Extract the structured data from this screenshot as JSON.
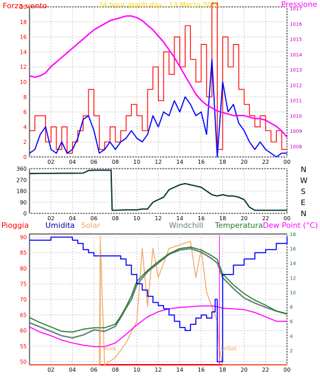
{
  "colors": {
    "wind": "#ff0000",
    "gust_blue": "#0000ff",
    "pressure": "#ff00ff",
    "title": "#ffd700",
    "direction": "#003333",
    "humidity_label": "#000099",
    "solar": "#f4a460",
    "windchill": "#5f7f7f",
    "temperature": "#1f7a1f",
    "dewpoint": "#ff00ff",
    "rain": "#ff0000",
    "grid": "#cccccc"
  },
  "top_panel": {
    "title": "24 hour graph day : 13 Marzo 2021",
    "left_label": "Forza vento",
    "right_label": "Pressione"
  },
  "middle_panel": {
    "compass": [
      "N",
      "W",
      "S",
      "E",
      "N"
    ]
  },
  "bottom_panel": {
    "legend": [
      "Pioggia",
      "Umidita",
      "Solar",
      "Windchill",
      "Temperatura",
      "Dew Point (°C)"
    ],
    "rise_label": "Rise",
    "set_label": "SunSet"
  },
  "chart_data": [
    {
      "type": "line",
      "title": "24 hour graph day : 13 Marzo 2021",
      "ylabel": "Forza vento",
      "y2label": "Pressione",
      "x_ticks": [
        "02",
        "04",
        "06",
        "08",
        "10",
        "12",
        "14",
        "16",
        "18",
        "20",
        "22",
        "00"
      ],
      "xlim": [
        0,
        24
      ],
      "ylim": [
        0,
        20
      ],
      "y_ticks": [
        0,
        2,
        4,
        6,
        8,
        10,
        12,
        14,
        16,
        18,
        20
      ],
      "y2lim": [
        1007.3,
        1017.1
      ],
      "y2_ticks": [
        1008,
        1009,
        1010,
        1011,
        1012,
        1013,
        1014,
        1015,
        1016,
        1017
      ],
      "series": [
        {
          "x": [
            0.0,
            0.5,
            1.0,
            1.5,
            2.0,
            2.5,
            3.0,
            3.5,
            4.0,
            4.5,
            5.0,
            5.5,
            6.0,
            6.5,
            7.0,
            7.5,
            8.0,
            8.5,
            9.0,
            9.5,
            10.0,
            10.5,
            11.0,
            11.5,
            12.0,
            12.5,
            13.0,
            13.5,
            14.0,
            14.5,
            15.0,
            15.5,
            16.0,
            16.5,
            17.0,
            17.5,
            18.0,
            18.5,
            19.0,
            19.5,
            20.0,
            20.5,
            21.0,
            21.5,
            22.0,
            22.5,
            23.0,
            23.5,
            24.0
          ],
          "values": [
            3.5,
            5.5,
            5.5,
            2.0,
            4.0,
            1.0,
            4.0,
            0.5,
            2.0,
            3.5,
            5.5,
            9.0,
            5.5,
            1.0,
            2.0,
            4.0,
            2.0,
            3.5,
            5.5,
            7.0,
            5.5,
            3.5,
            9.0,
            12.0,
            7.5,
            14.0,
            11.0,
            16.0,
            12.0,
            17.5,
            13.0,
            10.0,
            15.0,
            8.0,
            20.5,
            1.0,
            16.0,
            12.0,
            15.0,
            9.0,
            7.0,
            5.5,
            4.0,
            5.5,
            3.5,
            2.0,
            3.5,
            1.0,
            1.0
          ]
        },
        {
          "x": [
            0.0,
            0.5,
            1.0,
            1.5,
            2.0,
            2.5,
            3.0,
            3.5,
            4.0,
            4.5,
            5.0,
            5.5,
            6.0,
            6.5,
            7.0,
            7.5,
            8.0,
            8.5,
            9.0,
            9.5,
            10.0,
            10.5,
            11.0,
            11.5,
            12.0,
            12.5,
            13.0,
            13.5,
            14.0,
            14.5,
            15.0,
            15.5,
            16.0,
            16.5,
            17.0,
            17.5,
            18.0,
            18.5,
            19.0,
            19.5,
            20.0,
            20.5,
            21.0,
            21.5,
            22.0,
            22.5,
            23.0,
            23.5,
            24.0
          ],
          "values": [
            0.5,
            1.0,
            3.0,
            4.0,
            1.0,
            0.5,
            2.0,
            0.5,
            1.0,
            2.5,
            5.0,
            5.5,
            3.5,
            0.5,
            1.0,
            2.0,
            1.0,
            2.0,
            2.5,
            3.5,
            2.5,
            2.0,
            3.0,
            5.5,
            4.0,
            6.0,
            5.5,
            7.5,
            6.0,
            8.0,
            7.0,
            5.5,
            6.0,
            3.0,
            13.0,
            0.0,
            10.0,
            6.0,
            7.0,
            4.5,
            3.5,
            2.0,
            1.0,
            2.0,
            1.0,
            0.5,
            0.0,
            0.5,
            0.5
          ]
        },
        {
          "x": [
            0.0,
            0.5,
            1.0,
            1.5,
            2.0,
            2.5,
            3.0,
            3.5,
            4.0,
            4.5,
            5.0,
            5.5,
            6.0,
            6.5,
            7.0,
            7.5,
            8.0,
            8.5,
            9.0,
            9.5,
            10.0,
            10.5,
            11.0,
            11.5,
            12.0,
            12.5,
            13.0,
            13.5,
            14.0,
            14.5,
            15.0,
            15.5,
            16.0,
            16.5,
            17.0,
            17.5,
            18.0,
            18.5,
            19.0,
            19.5,
            20.0,
            20.5,
            21.0,
            21.5,
            22.0,
            22.5,
            23.0,
            23.5,
            24.0
          ],
          "values": [
            1012.6,
            1012.5,
            1012.6,
            1012.8,
            1013.2,
            1013.5,
            1013.8,
            1014.1,
            1014.4,
            1014.7,
            1015.0,
            1015.3,
            1015.6,
            1015.8,
            1016.0,
            1016.2,
            1016.3,
            1016.4,
            1016.5,
            1016.5,
            1016.4,
            1016.2,
            1015.9,
            1015.6,
            1015.2,
            1014.8,
            1014.3,
            1013.8,
            1013.2,
            1012.6,
            1012.0,
            1011.4,
            1011.0,
            1010.7,
            1010.5,
            1010.3,
            1010.2,
            1010.1,
            1010.0,
            1010.0,
            1010.0,
            1009.9,
            1009.8,
            1009.8,
            1009.7,
            1009.5,
            1009.3,
            1009.0,
            1008.6
          ],
          "axis": "right"
        }
      ]
    },
    {
      "type": "line",
      "x_ticks": [
        "02",
        "04",
        "06",
        "08",
        "10",
        "12",
        "14",
        "16",
        "18",
        "20",
        "22",
        "00"
      ],
      "xlim": [
        0,
        24
      ],
      "ylim": [
        0,
        360
      ],
      "y_ticks": [
        0,
        90,
        180,
        270,
        360
      ],
      "series": [
        {
          "x": [
            0.0,
            1.0,
            2.0,
            3.0,
            4.0,
            5.0,
            5.5,
            6.0,
            7.0,
            7.6,
            7.7,
            8.0,
            9.0,
            10.0,
            10.5,
            11.0,
            11.5,
            12.0,
            12.5,
            13.0,
            13.5,
            14.0,
            14.5,
            15.0,
            15.5,
            16.0,
            16.5,
            17.0,
            17.5,
            18.0,
            18.5,
            19.0,
            19.5,
            20.0,
            20.5,
            21.0,
            22.0,
            23.0,
            24.0
          ],
          "values": [
            320,
            322,
            322,
            323,
            323,
            324,
            345,
            347,
            347,
            347,
            25,
            25,
            28,
            28,
            35,
            35,
            90,
            110,
            130,
            190,
            210,
            230,
            240,
            230,
            220,
            210,
            180,
            150,
            140,
            150,
            140,
            140,
            130,
            110,
            50,
            25,
            25,
            25,
            25
          ]
        }
      ]
    },
    {
      "type": "line",
      "x_ticks": [
        "02",
        "04",
        "06",
        "08",
        "10",
        "12",
        "14",
        "16",
        "18",
        "20",
        "22",
        "00"
      ],
      "xlim": [
        0,
        24
      ],
      "ylim": [
        49,
        91
      ],
      "y_ticks": [
        50,
        55,
        60,
        65,
        70,
        75,
        80,
        85,
        90
      ],
      "y2lim": [
        0,
        18
      ],
      "y2_ticks": [
        2,
        4,
        6,
        8,
        10,
        12,
        14,
        16,
        18
      ],
      "series": [
        {
          "name": "Umidita",
          "x": [
            0.0,
            1.0,
            2.0,
            3.0,
            4.0,
            4.5,
            5.0,
            5.5,
            6.0,
            7.0,
            8.0,
            8.5,
            9.0,
            9.5,
            10.0,
            10.5,
            11.0,
            11.5,
            12.0,
            12.5,
            13.0,
            13.5,
            14.0,
            14.5,
            15.0,
            15.5,
            16.0,
            16.5,
            17.0,
            17.3,
            17.5,
            17.8,
            18.0,
            19.0,
            20.0,
            21.0,
            22.0,
            23.0,
            24.0
          ],
          "values": [
            89,
            89,
            90,
            90,
            89,
            88,
            86,
            85,
            84,
            84,
            84,
            83,
            81,
            78,
            75,
            73,
            71,
            69,
            68,
            67,
            65,
            63,
            61,
            60,
            62,
            64,
            65,
            64,
            66,
            70,
            50,
            50,
            78,
            81,
            83,
            85,
            86,
            88,
            90
          ]
        },
        {
          "name": "Solar",
          "x": [
            0.0,
            6.0,
            6.5,
            6.6,
            7.0,
            8.0,
            9.0,
            10.0,
            10.5,
            11.0,
            11.5,
            12.0,
            12.5,
            13.0,
            14.0,
            15.0,
            15.5,
            16.0,
            16.5,
            17.0,
            17.5,
            17.7,
            18.0,
            24.0
          ],
          "values": [
            0,
            0,
            0,
            17,
            0,
            1,
            3,
            6,
            16,
            8,
            16,
            12,
            14,
            16,
            16.5,
            17,
            12,
            16,
            10,
            8,
            6,
            2,
            0,
            0
          ],
          "axis": "right"
        },
        {
          "name": "Windchill",
          "x": [
            0.0,
            1.0,
            2.0,
            3.0,
            4.0,
            5.0,
            6.0,
            7.0,
            8.0,
            8.5,
            9.0,
            9.5,
            10.0,
            11.0,
            12.0,
            13.0,
            14.0,
            15.0,
            16.0,
            17.0,
            17.5,
            18.0,
            19.0,
            20.0,
            21.0,
            22.0,
            23.0,
            24.0
          ],
          "values": [
            5.8,
            5.2,
            4.6,
            4.0,
            3.7,
            4.1,
            4.8,
            4.6,
            5.3,
            6.5,
            7.8,
            9.0,
            11.0,
            12.8,
            14.0,
            15.2,
            15.8,
            16.0,
            15.5,
            14.6,
            14.0,
            12.0,
            10.5,
            9.2,
            8.5,
            7.9,
            7.4,
            7.0
          ],
          "axis": "right"
        },
        {
          "name": "Temperatura",
          "x": [
            0.0,
            1.0,
            2.0,
            3.0,
            4.0,
            5.0,
            6.0,
            7.0,
            8.0,
            8.5,
            9.0,
            9.5,
            10.0,
            11.0,
            12.0,
            13.0,
            14.0,
            15.0,
            16.0,
            17.0,
            17.5,
            18.0,
            19.0,
            20.0,
            21.0,
            22.0,
            23.0,
            24.0
          ],
          "values": [
            6.5,
            5.8,
            5.2,
            4.6,
            4.5,
            4.9,
            5.1,
            5.1,
            5.6,
            6.7,
            8.0,
            9.5,
            11.5,
            13.0,
            14.2,
            15.3,
            16.0,
            16.2,
            15.8,
            15.0,
            14.5,
            12.5,
            11.0,
            9.8,
            8.9,
            8.2,
            7.4,
            7.0
          ],
          "axis": "right"
        },
        {
          "name": "Dew Point (°C)",
          "x": [
            0.0,
            1.0,
            2.0,
            3.0,
            4.0,
            5.0,
            6.0,
            7.0,
            8.0,
            9.0,
            10.0,
            11.0,
            12.0,
            13.0,
            14.0,
            15.0,
            16.0,
            17.0,
            17.5,
            18.0,
            19.0,
            20.0,
            21.0,
            22.0,
            23.0,
            24.0
          ],
          "values": [
            5.2,
            4.5,
            4.0,
            3.4,
            3.0,
            2.7,
            2.5,
            2.5,
            3.0,
            4.2,
            5.5,
            6.6,
            7.3,
            7.7,
            7.9,
            8.0,
            8.1,
            8.1,
            8.0,
            7.8,
            7.7,
            7.6,
            7.2,
            6.6,
            6.0,
            6.0
          ],
          "axis": "right"
        },
        {
          "name": "Pioggia",
          "x": [
            0,
            24
          ],
          "values": [
            0,
            0
          ],
          "axis": "right"
        }
      ]
    }
  ]
}
